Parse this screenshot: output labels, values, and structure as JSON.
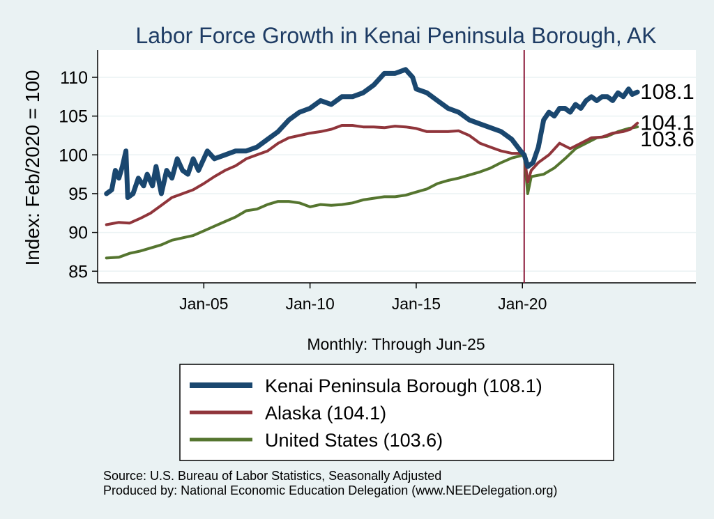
{
  "colors": {
    "background": "#eaf2f3",
    "plot_background": "#ffffff",
    "gridline": "#eaf2f3",
    "title": "#1e3c64",
    "kenai": "#1a476f",
    "alaska": "#90353b",
    "us": "#55752f",
    "marker_line": "#8b1a3a"
  },
  "source_note": "Source: U.S. Bureau of Labor Statistics, Seasonally Adjusted",
  "producer_note": "Produced by: National Economic Education Delegation (www.NEEDelegation.org)",
  "chart_data": {
    "type": "line",
    "title": "Labor Force Growth in Kenai Peninsula Borough, AK",
    "xlabel": "Monthly: Through Jun-25",
    "ylabel": "Index: Feb/2020 = 100",
    "xlim": [
      "2000-01",
      "2028-03"
    ],
    "ylim": [
      83.5,
      113.5
    ],
    "x_ticks": [
      {
        "date": "2005-01",
        "label": "Jan-05"
      },
      {
        "date": "2010-01",
        "label": "Jan-10"
      },
      {
        "date": "2015-01",
        "label": "Jan-15"
      },
      {
        "date": "2020-01",
        "label": "Jan-20"
      }
    ],
    "y_ticks": [
      85,
      90,
      95,
      100,
      105,
      110
    ],
    "grid": true,
    "reference_line": {
      "date": "2020-02"
    },
    "legend_position": "bottom",
    "series": [
      {
        "name": "Kenai Peninsula Borough  (108.1)",
        "color": "#1a476f",
        "end_label": "108.1",
        "points": [
          [
            "2000-06",
            95.0
          ],
          [
            "2000-09",
            95.5
          ],
          [
            "2000-11",
            98.0
          ],
          [
            "2001-01",
            97.0
          ],
          [
            "2001-03",
            98.5
          ],
          [
            "2001-05",
            100.5
          ],
          [
            "2001-06",
            94.5
          ],
          [
            "2001-09",
            95.0
          ],
          [
            "2001-12",
            97.0
          ],
          [
            "2002-03",
            96.0
          ],
          [
            "2002-05",
            97.5
          ],
          [
            "2002-08",
            96.0
          ],
          [
            "2002-10",
            98.5
          ],
          [
            "2003-01",
            95.0
          ],
          [
            "2003-04",
            98.0
          ],
          [
            "2003-07",
            97.0
          ],
          [
            "2003-10",
            99.5
          ],
          [
            "2004-01",
            98.0
          ],
          [
            "2004-04",
            97.5
          ],
          [
            "2004-07",
            99.5
          ],
          [
            "2004-10",
            98.0
          ],
          [
            "2005-03",
            100.5
          ],
          [
            "2005-07",
            99.5
          ],
          [
            "2006-01",
            100.0
          ],
          [
            "2006-07",
            100.5
          ],
          [
            "2007-01",
            100.5
          ],
          [
            "2007-07",
            101.0
          ],
          [
            "2008-01",
            102.0
          ],
          [
            "2008-07",
            103.0
          ],
          [
            "2009-01",
            104.5
          ],
          [
            "2009-07",
            105.5
          ],
          [
            "2010-01",
            106.0
          ],
          [
            "2010-07",
            107.0
          ],
          [
            "2011-01",
            106.5
          ],
          [
            "2011-07",
            107.5
          ],
          [
            "2012-01",
            107.5
          ],
          [
            "2012-07",
            108.0
          ],
          [
            "2013-01",
            109.0
          ],
          [
            "2013-07",
            110.5
          ],
          [
            "2014-01",
            110.5
          ],
          [
            "2014-07",
            111.0
          ],
          [
            "2014-11",
            110.0
          ],
          [
            "2015-01",
            108.5
          ],
          [
            "2015-07",
            108.0
          ],
          [
            "2016-01",
            107.0
          ],
          [
            "2016-07",
            106.0
          ],
          [
            "2017-01",
            105.5
          ],
          [
            "2017-07",
            104.5
          ],
          [
            "2018-01",
            104.0
          ],
          [
            "2018-07",
            103.5
          ],
          [
            "2019-01",
            103.0
          ],
          [
            "2019-07",
            102.0
          ],
          [
            "2019-12",
            100.5
          ],
          [
            "2020-02",
            100.0
          ],
          [
            "2020-04",
            98.5
          ],
          [
            "2020-07",
            99.0
          ],
          [
            "2020-10",
            101.0
          ],
          [
            "2021-01",
            104.5
          ],
          [
            "2021-04",
            105.5
          ],
          [
            "2021-07",
            105.0
          ],
          [
            "2021-10",
            106.0
          ],
          [
            "2022-01",
            106.0
          ],
          [
            "2022-04",
            105.5
          ],
          [
            "2022-07",
            106.5
          ],
          [
            "2022-10",
            106.0
          ],
          [
            "2023-01",
            107.0
          ],
          [
            "2023-04",
            107.5
          ],
          [
            "2023-07",
            107.0
          ],
          [
            "2023-10",
            107.5
          ],
          [
            "2024-01",
            107.5
          ],
          [
            "2024-04",
            107.0
          ],
          [
            "2024-07",
            108.0
          ],
          [
            "2024-10",
            107.5
          ],
          [
            "2025-01",
            108.5
          ],
          [
            "2025-03",
            107.8
          ],
          [
            "2025-06",
            108.1
          ]
        ]
      },
      {
        "name": "Alaska (104.1)",
        "color": "#90353b",
        "end_label": "104.1",
        "points": [
          [
            "2000-06",
            91.0
          ],
          [
            "2001-01",
            91.3
          ],
          [
            "2001-07",
            91.2
          ],
          [
            "2002-01",
            91.8
          ],
          [
            "2002-07",
            92.5
          ],
          [
            "2003-01",
            93.5
          ],
          [
            "2003-07",
            94.5
          ],
          [
            "2004-01",
            95.0
          ],
          [
            "2004-07",
            95.5
          ],
          [
            "2005-01",
            96.3
          ],
          [
            "2005-07",
            97.2
          ],
          [
            "2006-01",
            98.0
          ],
          [
            "2006-07",
            98.6
          ],
          [
            "2007-01",
            99.5
          ],
          [
            "2007-07",
            100.0
          ],
          [
            "2008-01",
            100.5
          ],
          [
            "2008-07",
            101.5
          ],
          [
            "2009-01",
            102.2
          ],
          [
            "2009-07",
            102.5
          ],
          [
            "2010-01",
            102.8
          ],
          [
            "2010-07",
            103.0
          ],
          [
            "2011-01",
            103.3
          ],
          [
            "2011-07",
            103.8
          ],
          [
            "2012-01",
            103.8
          ],
          [
            "2012-07",
            103.6
          ],
          [
            "2013-01",
            103.6
          ],
          [
            "2013-07",
            103.5
          ],
          [
            "2014-01",
            103.7
          ],
          [
            "2014-07",
            103.6
          ],
          [
            "2015-01",
            103.4
          ],
          [
            "2015-07",
            103.0
          ],
          [
            "2016-01",
            103.0
          ],
          [
            "2016-07",
            103.0
          ],
          [
            "2017-01",
            103.1
          ],
          [
            "2017-07",
            102.5
          ],
          [
            "2018-01",
            101.5
          ],
          [
            "2018-07",
            101.0
          ],
          [
            "2019-01",
            100.5
          ],
          [
            "2019-07",
            100.2
          ],
          [
            "2020-01",
            100.2
          ],
          [
            "2020-02",
            100.0
          ],
          [
            "2020-04",
            96.5
          ],
          [
            "2020-06",
            98.0
          ],
          [
            "2020-10",
            99.0
          ],
          [
            "2021-04",
            100.0
          ],
          [
            "2021-10",
            101.5
          ],
          [
            "2022-04",
            100.8
          ],
          [
            "2022-10",
            101.5
          ],
          [
            "2023-04",
            102.2
          ],
          [
            "2023-10",
            102.3
          ],
          [
            "2024-04",
            102.8
          ],
          [
            "2024-10",
            103.0
          ],
          [
            "2025-02",
            103.3
          ],
          [
            "2025-06",
            104.1
          ]
        ]
      },
      {
        "name": "United States (103.6)",
        "color": "#55752f",
        "end_label": "103.6",
        "points": [
          [
            "2000-06",
            86.7
          ],
          [
            "2001-01",
            86.8
          ],
          [
            "2001-07",
            87.3
          ],
          [
            "2002-01",
            87.6
          ],
          [
            "2002-07",
            88.0
          ],
          [
            "2003-01",
            88.4
          ],
          [
            "2003-07",
            89.0
          ],
          [
            "2004-01",
            89.3
          ],
          [
            "2004-07",
            89.6
          ],
          [
            "2005-01",
            90.2
          ],
          [
            "2005-07",
            90.8
          ],
          [
            "2006-01",
            91.4
          ],
          [
            "2006-07",
            92.0
          ],
          [
            "2007-01",
            92.8
          ],
          [
            "2007-07",
            93.0
          ],
          [
            "2008-01",
            93.6
          ],
          [
            "2008-07",
            94.0
          ],
          [
            "2009-01",
            94.0
          ],
          [
            "2009-07",
            93.8
          ],
          [
            "2010-01",
            93.3
          ],
          [
            "2010-07",
            93.6
          ],
          [
            "2011-01",
            93.5
          ],
          [
            "2011-07",
            93.6
          ],
          [
            "2012-01",
            93.8
          ],
          [
            "2012-07",
            94.2
          ],
          [
            "2013-01",
            94.4
          ],
          [
            "2013-07",
            94.6
          ],
          [
            "2014-01",
            94.6
          ],
          [
            "2014-07",
            94.8
          ],
          [
            "2015-01",
            95.2
          ],
          [
            "2015-07",
            95.6
          ],
          [
            "2016-01",
            96.3
          ],
          [
            "2016-07",
            96.7
          ],
          [
            "2017-01",
            97.0
          ],
          [
            "2017-07",
            97.4
          ],
          [
            "2018-01",
            97.8
          ],
          [
            "2018-07",
            98.3
          ],
          [
            "2019-01",
            99.0
          ],
          [
            "2019-07",
            99.6
          ],
          [
            "2020-02",
            100.0
          ],
          [
            "2020-04",
            95.0
          ],
          [
            "2020-06",
            97.2
          ],
          [
            "2021-01",
            97.5
          ],
          [
            "2021-07",
            98.3
          ],
          [
            "2022-01",
            99.5
          ],
          [
            "2022-07",
            100.8
          ],
          [
            "2023-01",
            101.5
          ],
          [
            "2023-07",
            102.2
          ],
          [
            "2024-01",
            102.4
          ],
          [
            "2024-07",
            103.0
          ],
          [
            "2025-01",
            103.4
          ],
          [
            "2025-06",
            103.6
          ]
        ]
      }
    ]
  }
}
